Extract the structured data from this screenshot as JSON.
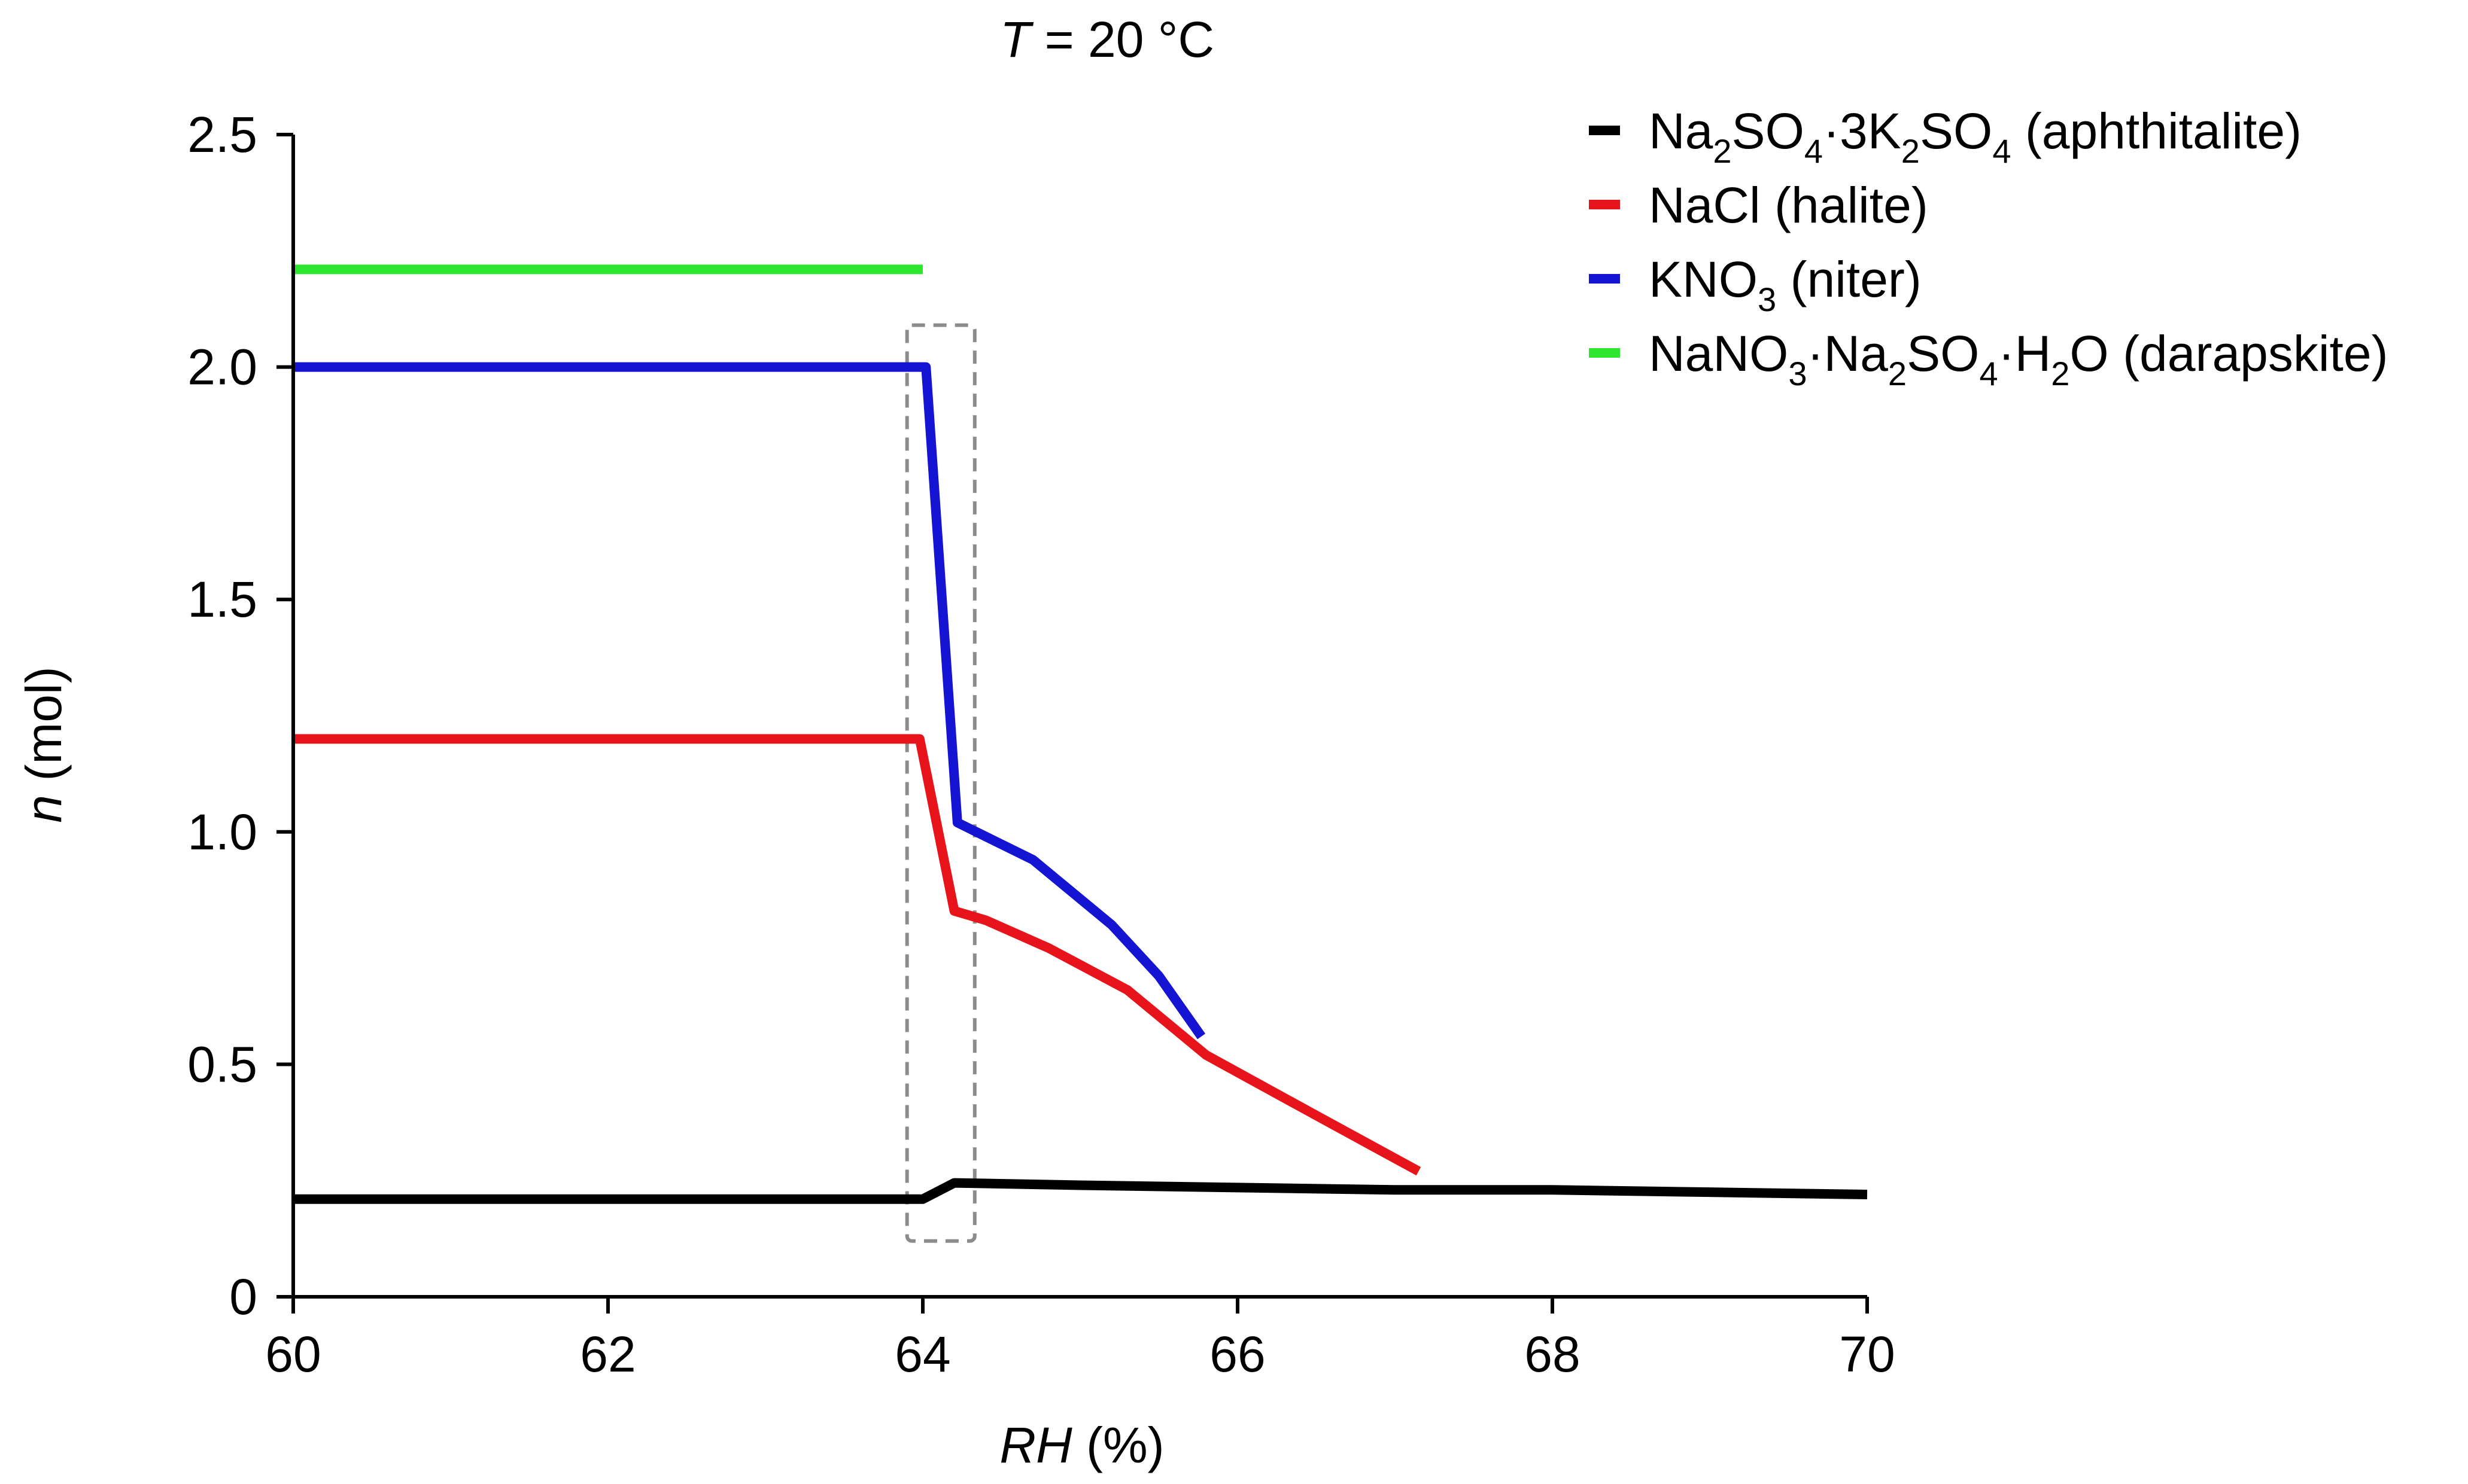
{
  "chart_data": {
    "type": "line",
    "title": "T = 20 °C",
    "title_var": "T",
    "title_rest": " = 20 °C",
    "xlabel": "RH (%)",
    "xlabel_var": "RH",
    "xlabel_rest": " (%)",
    "ylabel": "n (mol)",
    "ylabel_var": "n",
    "ylabel_rest": " (mol)",
    "xlim": [
      60,
      70
    ],
    "ylim": [
      0,
      2.5
    ],
    "xticks": [
      60,
      62,
      64,
      66,
      68,
      70
    ],
    "xtick_labels": [
      "60",
      "62",
      "64",
      "66",
      "68",
      "70"
    ],
    "yticks": [
      0,
      0.5,
      1.0,
      1.5,
      2.0,
      2.5
    ],
    "ytick_labels": [
      "0",
      "0.5",
      "1.0",
      "1.5",
      "2.0",
      "2.5"
    ],
    "grid": false,
    "legend_position": "top-right",
    "highlight_region": {
      "x": [
        63.9,
        64.33
      ],
      "y": [
        0.12,
        2.09
      ],
      "style": "dashed"
    },
    "series": [
      {
        "name": "Na2SO4·3K2SO4 (aphthitalite)",
        "formula": [
          [
            "Na",
            ""
          ],
          [
            "2",
            "sub"
          ],
          [
            "SO",
            ""
          ],
          [
            "4",
            "sub"
          ],
          [
            "·3K",
            ""
          ],
          [
            "2",
            "sub"
          ],
          [
            "SO",
            ""
          ],
          [
            "4",
            "sub"
          ]
        ],
        "mineral": " (aphthitalite)",
        "color": "#000000",
        "x": [
          60,
          64.0,
          64.2,
          65.0,
          66.0,
          67.0,
          68.0,
          69.0,
          70.0
        ],
        "y": [
          0.21,
          0.21,
          0.245,
          0.24,
          0.235,
          0.23,
          0.23,
          0.225,
          0.22
        ]
      },
      {
        "name": "NaCl (halite)",
        "formula": [
          [
            "NaCl",
            ""
          ]
        ],
        "mineral": "  (halite)",
        "color": "#e8141c",
        "x": [
          60,
          63.98,
          64.2,
          64.4,
          64.8,
          65.3,
          65.8,
          66.5,
          67.15
        ],
        "y": [
          1.2,
          1.2,
          0.83,
          0.81,
          0.75,
          0.66,
          0.52,
          0.39,
          0.27
        ]
      },
      {
        "name": "KNO3 (niter)",
        "formula": [
          [
            "KNO",
            ""
          ],
          [
            "3",
            "sub"
          ]
        ],
        "mineral": " (niter)",
        "color": "#1414d2",
        "x": [
          60,
          64.02,
          64.22,
          64.7,
          65.2,
          65.5,
          65.77
        ],
        "y": [
          2.0,
          2.0,
          1.02,
          0.94,
          0.8,
          0.69,
          0.56
        ]
      },
      {
        "name": "NaNO3·Na2SO4·H2O (darapskite)",
        "formula": [
          [
            "NaNO",
            ""
          ],
          [
            "3",
            "sub"
          ],
          [
            "·Na",
            ""
          ],
          [
            "2",
            "sub"
          ],
          [
            "SO",
            ""
          ],
          [
            "4",
            "sub"
          ],
          [
            "·H",
            ""
          ],
          [
            "2",
            "sub"
          ],
          [
            "O",
            ""
          ]
        ],
        "mineral": "  (darapskite)",
        "color": "#2ee62e",
        "x": [
          60,
          64.0
        ],
        "y": [
          2.21,
          2.21
        ]
      }
    ]
  }
}
